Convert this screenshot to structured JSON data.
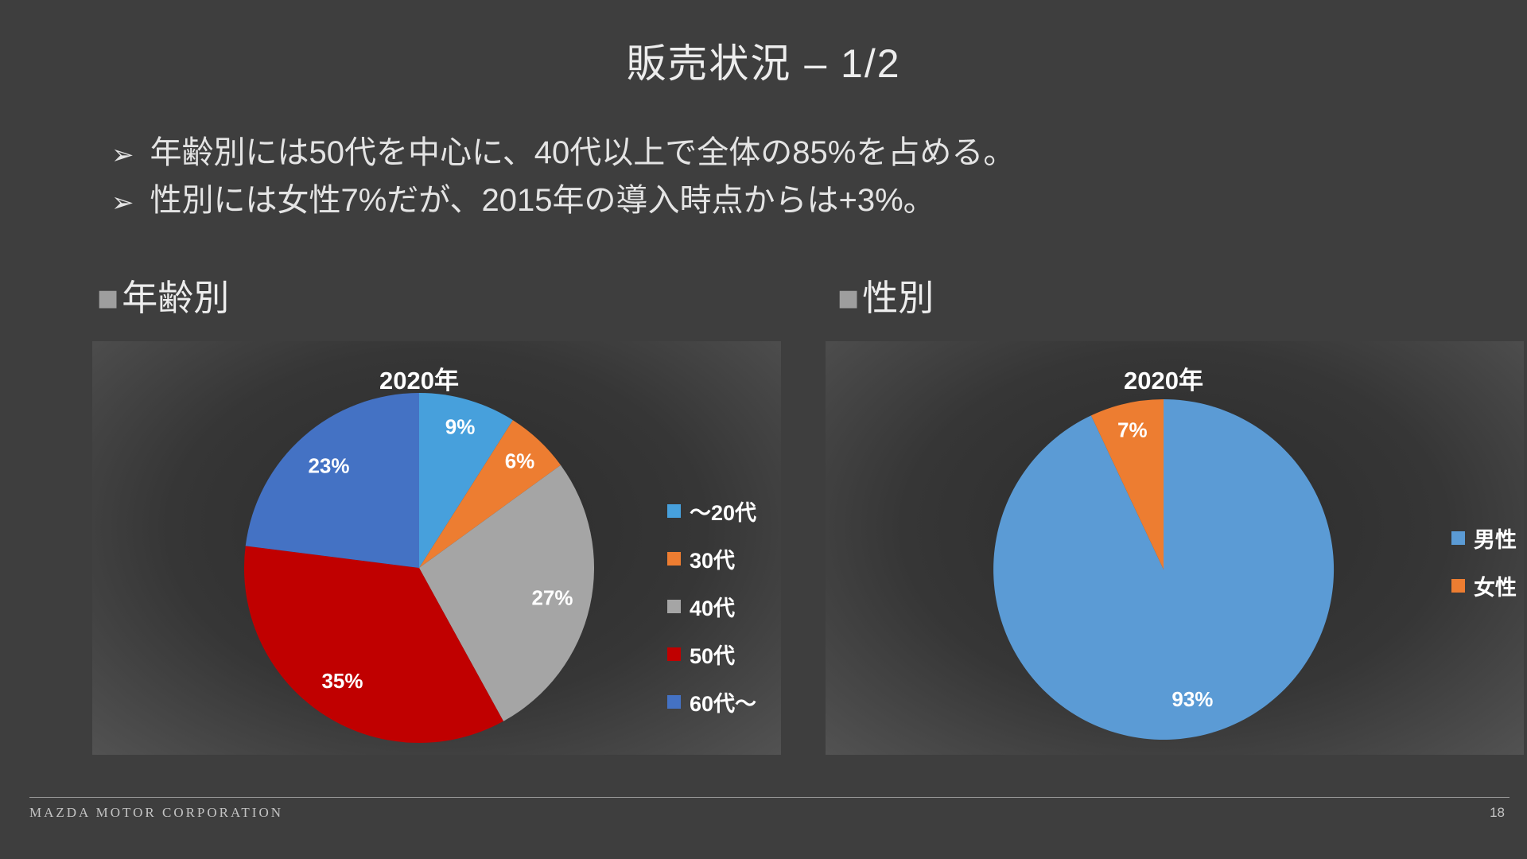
{
  "slide": {
    "title": "販売状況 – 1/2",
    "bullet_marker": "➢",
    "bullets": [
      "年齢別には50代を中心に、40代以上で全体の85%を占める。",
      "性別には女性7%だが、2015年の導入時点からは+3%。"
    ],
    "footer": {
      "company": "MAZDA MOTOR CORPORATION",
      "page_number": "18"
    }
  },
  "sections": [
    {
      "marker": "■",
      "label": "年齢別"
    },
    {
      "marker": "■",
      "label": "性別"
    }
  ],
  "colors": {
    "slide_background": "#3e3e3e",
    "chart_panel_background": "#333333",
    "text": "#ededed"
  },
  "chart_data": [
    {
      "type": "pie",
      "title": "2020年",
      "categories": [
        "～20代",
        "30代",
        "40代",
        "50代",
        "60代～"
      ],
      "values": [
        9,
        6,
        27,
        35,
        23
      ],
      "labels": [
        "9%",
        "6%",
        "27%",
        "35%",
        "23%"
      ],
      "colors": [
        "#47A0DC",
        "#ED7D31",
        "#A5A5A5",
        "#C00000",
        "#4472C4"
      ],
      "legend_position": "right",
      "start_angle_deg": 0,
      "direction": "clockwise"
    },
    {
      "type": "pie",
      "title": "2020年",
      "categories": [
        "男性",
        "女性"
      ],
      "values": [
        93,
        7
      ],
      "labels": [
        "93%",
        "7%"
      ],
      "colors": [
        "#5B9BD5",
        "#ED7D31"
      ],
      "legend_position": "right",
      "start_angle_deg": 0,
      "direction": "clockwise"
    }
  ]
}
